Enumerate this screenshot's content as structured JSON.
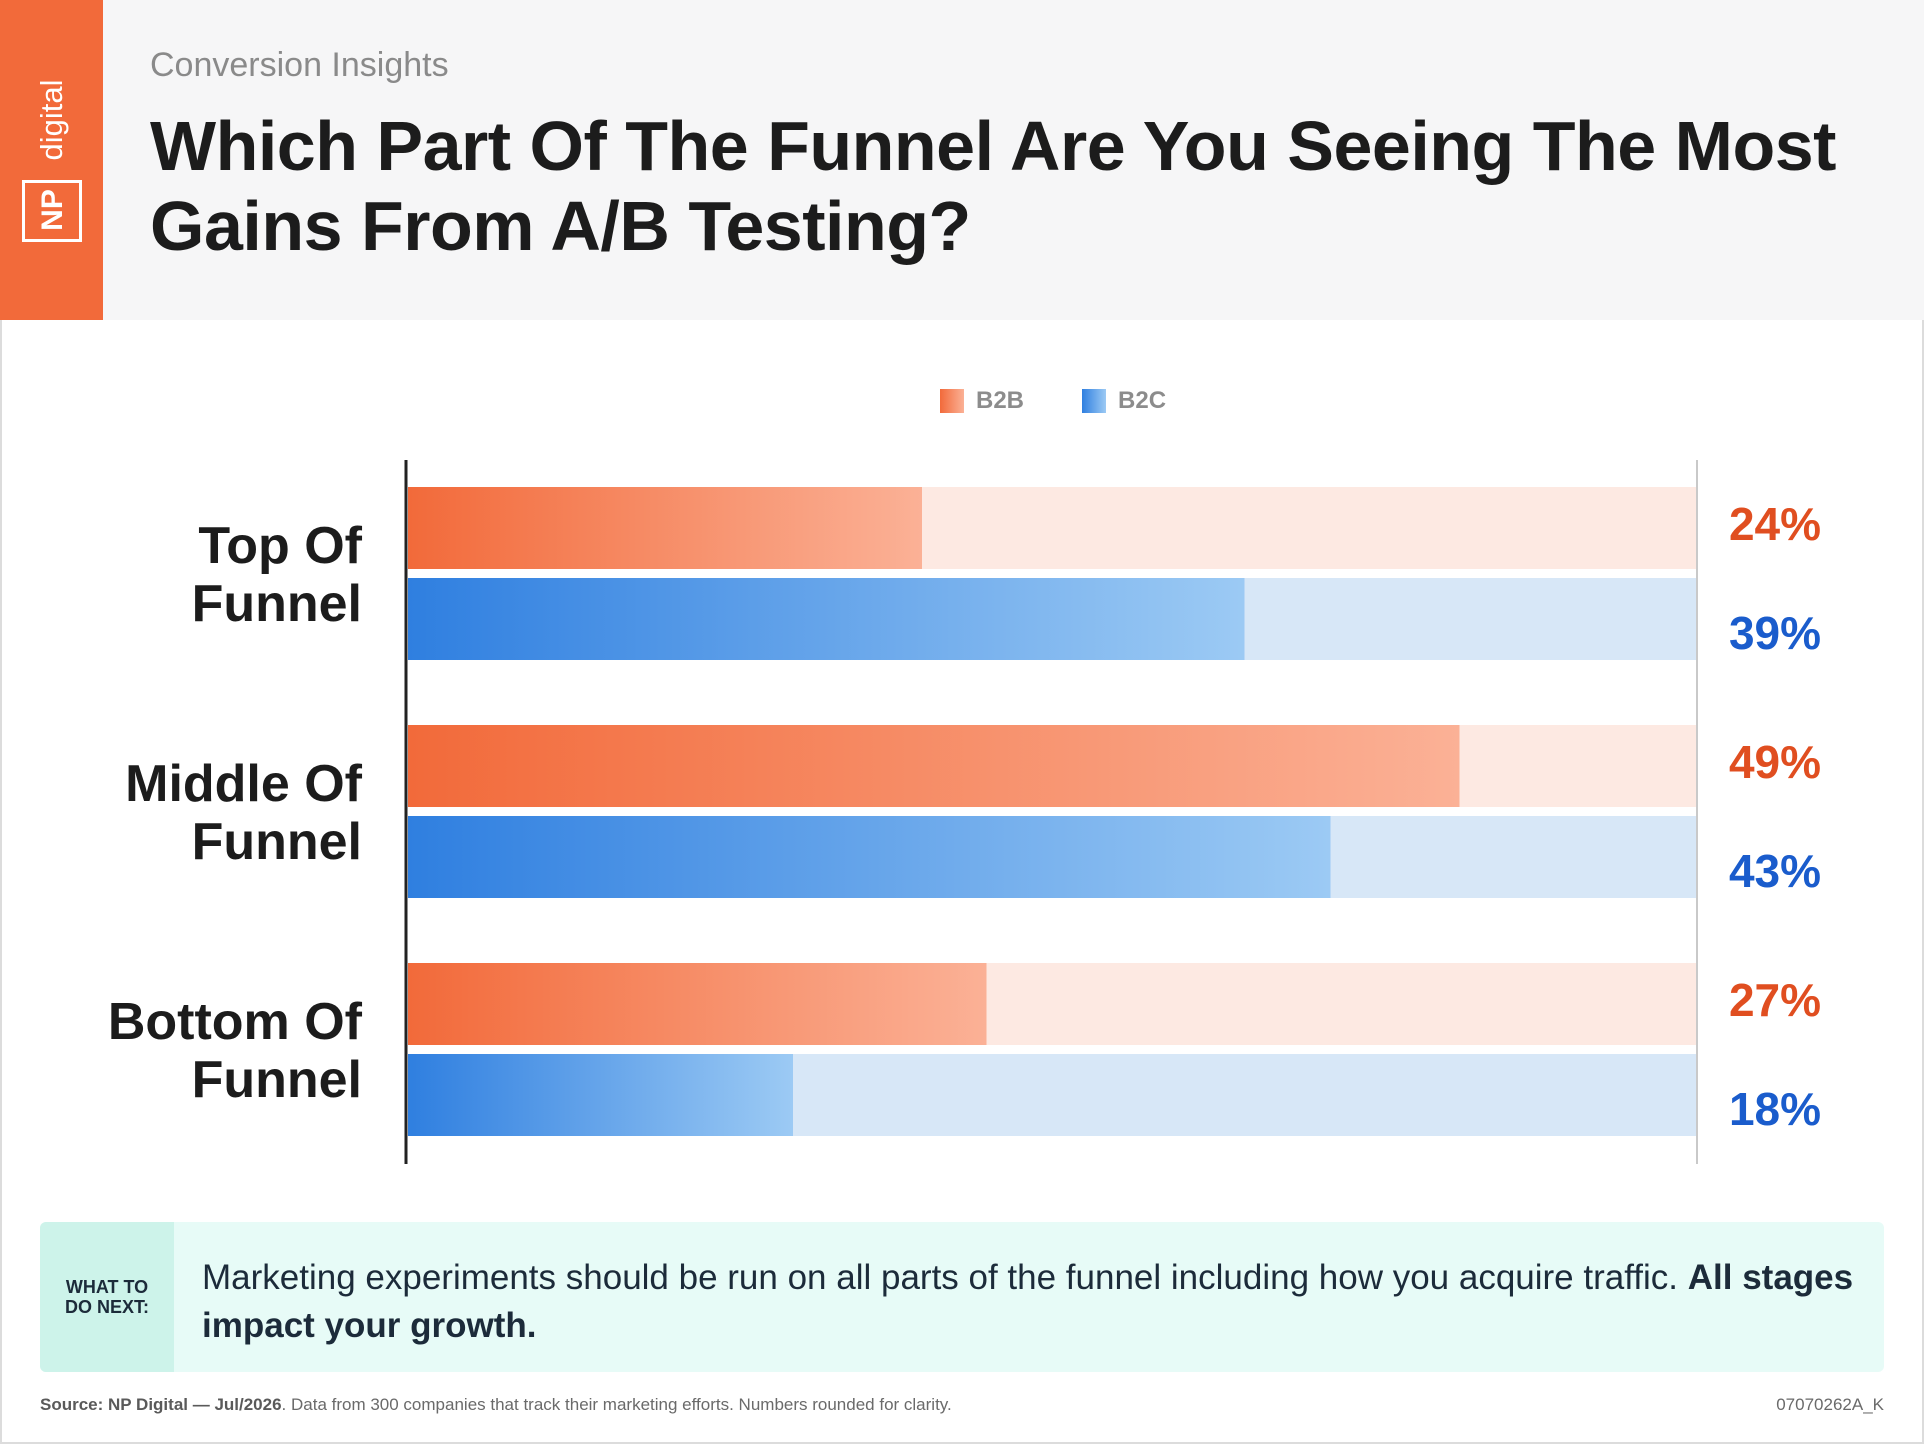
{
  "header": {
    "kicker": "Conversion Insights",
    "title": "Which Part Of The Funnel Are You Seeing The Most Gains From A/B Testing?",
    "brand_np": "NP",
    "brand_digital": "digital",
    "brand_color": "#f26a3a"
  },
  "chart_data": {
    "type": "bar",
    "orientation": "horizontal",
    "categories": [
      "Top Of Funnel",
      "Middle Of Funnel",
      "Bottom Of Funnel"
    ],
    "category_lines": [
      [
        "Top Of",
        "Funnel"
      ],
      [
        "Middle Of",
        "Funnel"
      ],
      [
        "Bottom Of",
        "Funnel"
      ]
    ],
    "series": [
      {
        "name": "B2B",
        "values": [
          24,
          49,
          27
        ],
        "labels": [
          "24%",
          "49%",
          "27%"
        ],
        "color": "#f26a3a",
        "light": "#fbd3c0",
        "track": "#fde9e2",
        "label_color": "#e04e20"
      },
      {
        "name": "B2C",
        "values": [
          39,
          43,
          18
        ],
        "labels": [
          "39%",
          "43%",
          "18%"
        ],
        "color": "#2f7fe0",
        "light": "#9ccaf4",
        "track": "#d7e7f7",
        "label_color": "#1a5ccc"
      }
    ],
    "xlim": [
      0,
      60
    ],
    "unit": "%",
    "legend_position": "top-center",
    "grid": false
  },
  "next": {
    "tag": "WHAT TO\nDO NEXT:",
    "text_regular": "Marketing experiments should be run on all parts of the funnel including how you acquire traffic. ",
    "text_bold": "All stages impact your growth."
  },
  "footer": {
    "source_bold": "Source: NP Digital — Jul/2026",
    "source_rest": ". Data from 300 companies that track their marketing efforts. Numbers rounded for clarity.",
    "code": "07070262A_K"
  }
}
